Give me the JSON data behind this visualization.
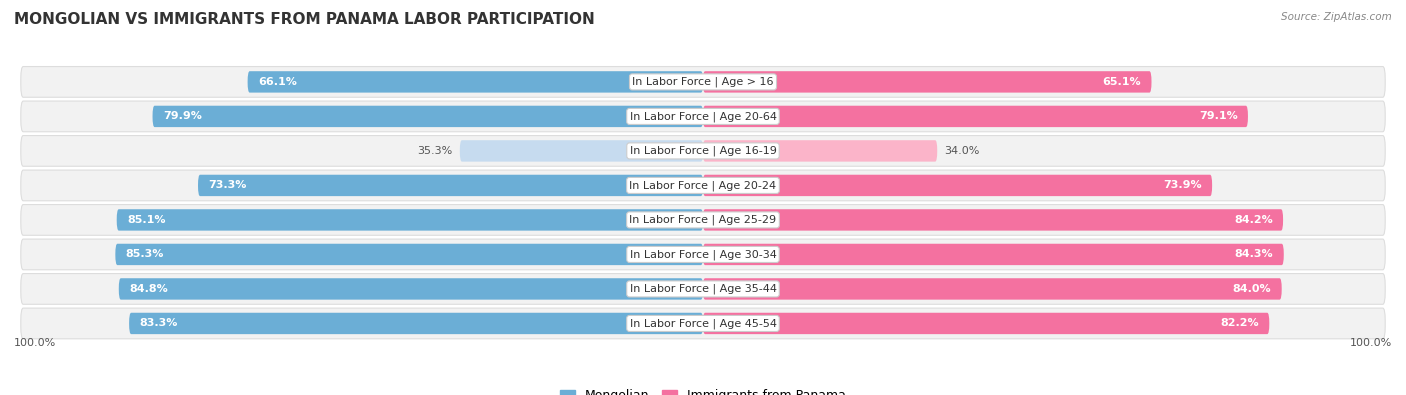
{
  "title": "MONGOLIAN VS IMMIGRANTS FROM PANAMA LABOR PARTICIPATION",
  "source": "Source: ZipAtlas.com",
  "categories": [
    "In Labor Force | Age > 16",
    "In Labor Force | Age 20-64",
    "In Labor Force | Age 16-19",
    "In Labor Force | Age 20-24",
    "In Labor Force | Age 25-29",
    "In Labor Force | Age 30-34",
    "In Labor Force | Age 35-44",
    "In Labor Force | Age 45-54"
  ],
  "mongolian_values": [
    66.1,
    79.9,
    35.3,
    73.3,
    85.1,
    85.3,
    84.8,
    83.3
  ],
  "panama_values": [
    65.1,
    79.1,
    34.0,
    73.9,
    84.2,
    84.3,
    84.0,
    82.2
  ],
  "mongolian_color": "#6baed6",
  "mongolian_color_light": "#c6dbef",
  "panama_color": "#f471a0",
  "panama_color_light": "#fbb4c9",
  "row_bg_color": "#f2f2f2",
  "row_border_color": "#dddddd",
  "max_value": 100.0,
  "legend_mongolian": "Mongolian",
  "legend_panama": "Immigrants from Panama",
  "title_fontsize": 11,
  "label_fontsize": 8,
  "value_fontsize": 8,
  "bottom_label": "100.0%",
  "threshold_for_light": 50
}
